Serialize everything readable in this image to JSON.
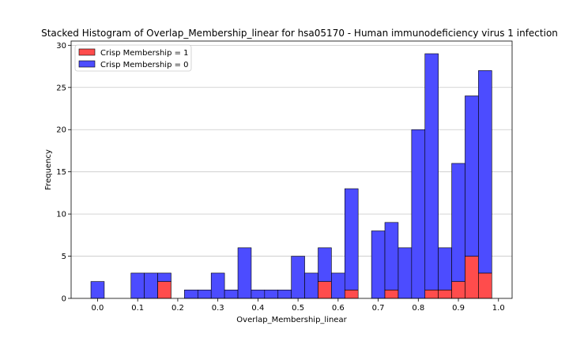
{
  "chart_data": {
    "type": "bar",
    "stacked": true,
    "title": "Stacked Histogram of Overlap_Membership_linear for hsa05170 - Human immunodeficiency virus 1 infection",
    "xlabel": "Overlap_Membership_linear",
    "ylabel": "Frequency",
    "xlim": [
      -0.066,
      1.034
    ],
    "ylim": [
      0,
      30.5
    ],
    "bin_width": 0.0333,
    "xticks": [
      "0.0",
      "0.1",
      "0.2",
      "0.3",
      "0.4",
      "0.5",
      "0.6",
      "0.7",
      "0.8",
      "0.9",
      "1.0"
    ],
    "yticks": [
      "0",
      "5",
      "10",
      "15",
      "20",
      "25",
      "30"
    ],
    "grid": "y",
    "legend_position": "top-left",
    "bins": [
      0.0,
      0.0333,
      0.0667,
      0.1,
      0.1333,
      0.1667,
      0.2,
      0.2333,
      0.2667,
      0.3,
      0.3333,
      0.3667,
      0.4,
      0.4333,
      0.4667,
      0.5,
      0.5333,
      0.5667,
      0.6,
      0.6333,
      0.6667,
      0.7,
      0.7333,
      0.7667,
      0.8,
      0.8333,
      0.8667,
      0.9,
      0.9333,
      0.9667
    ],
    "series": [
      {
        "name": "Crisp Membership = 1",
        "color": "#ff4c4c",
        "values": [
          0,
          0,
          0,
          0,
          0,
          2,
          0,
          0,
          0,
          0,
          0,
          0,
          0,
          0,
          0,
          0,
          0,
          2,
          0,
          1,
          0,
          0,
          1,
          0,
          0,
          1,
          1,
          2,
          5,
          3
        ]
      },
      {
        "name": "Crisp Membership = 0",
        "color": "#4c4cff",
        "values": [
          2,
          0,
          0,
          3,
          3,
          1,
          0,
          1,
          1,
          3,
          1,
          6,
          1,
          1,
          1,
          5,
          3,
          4,
          3,
          12,
          0,
          8,
          8,
          6,
          20,
          28,
          5,
          14,
          19,
          24
        ]
      }
    ]
  }
}
